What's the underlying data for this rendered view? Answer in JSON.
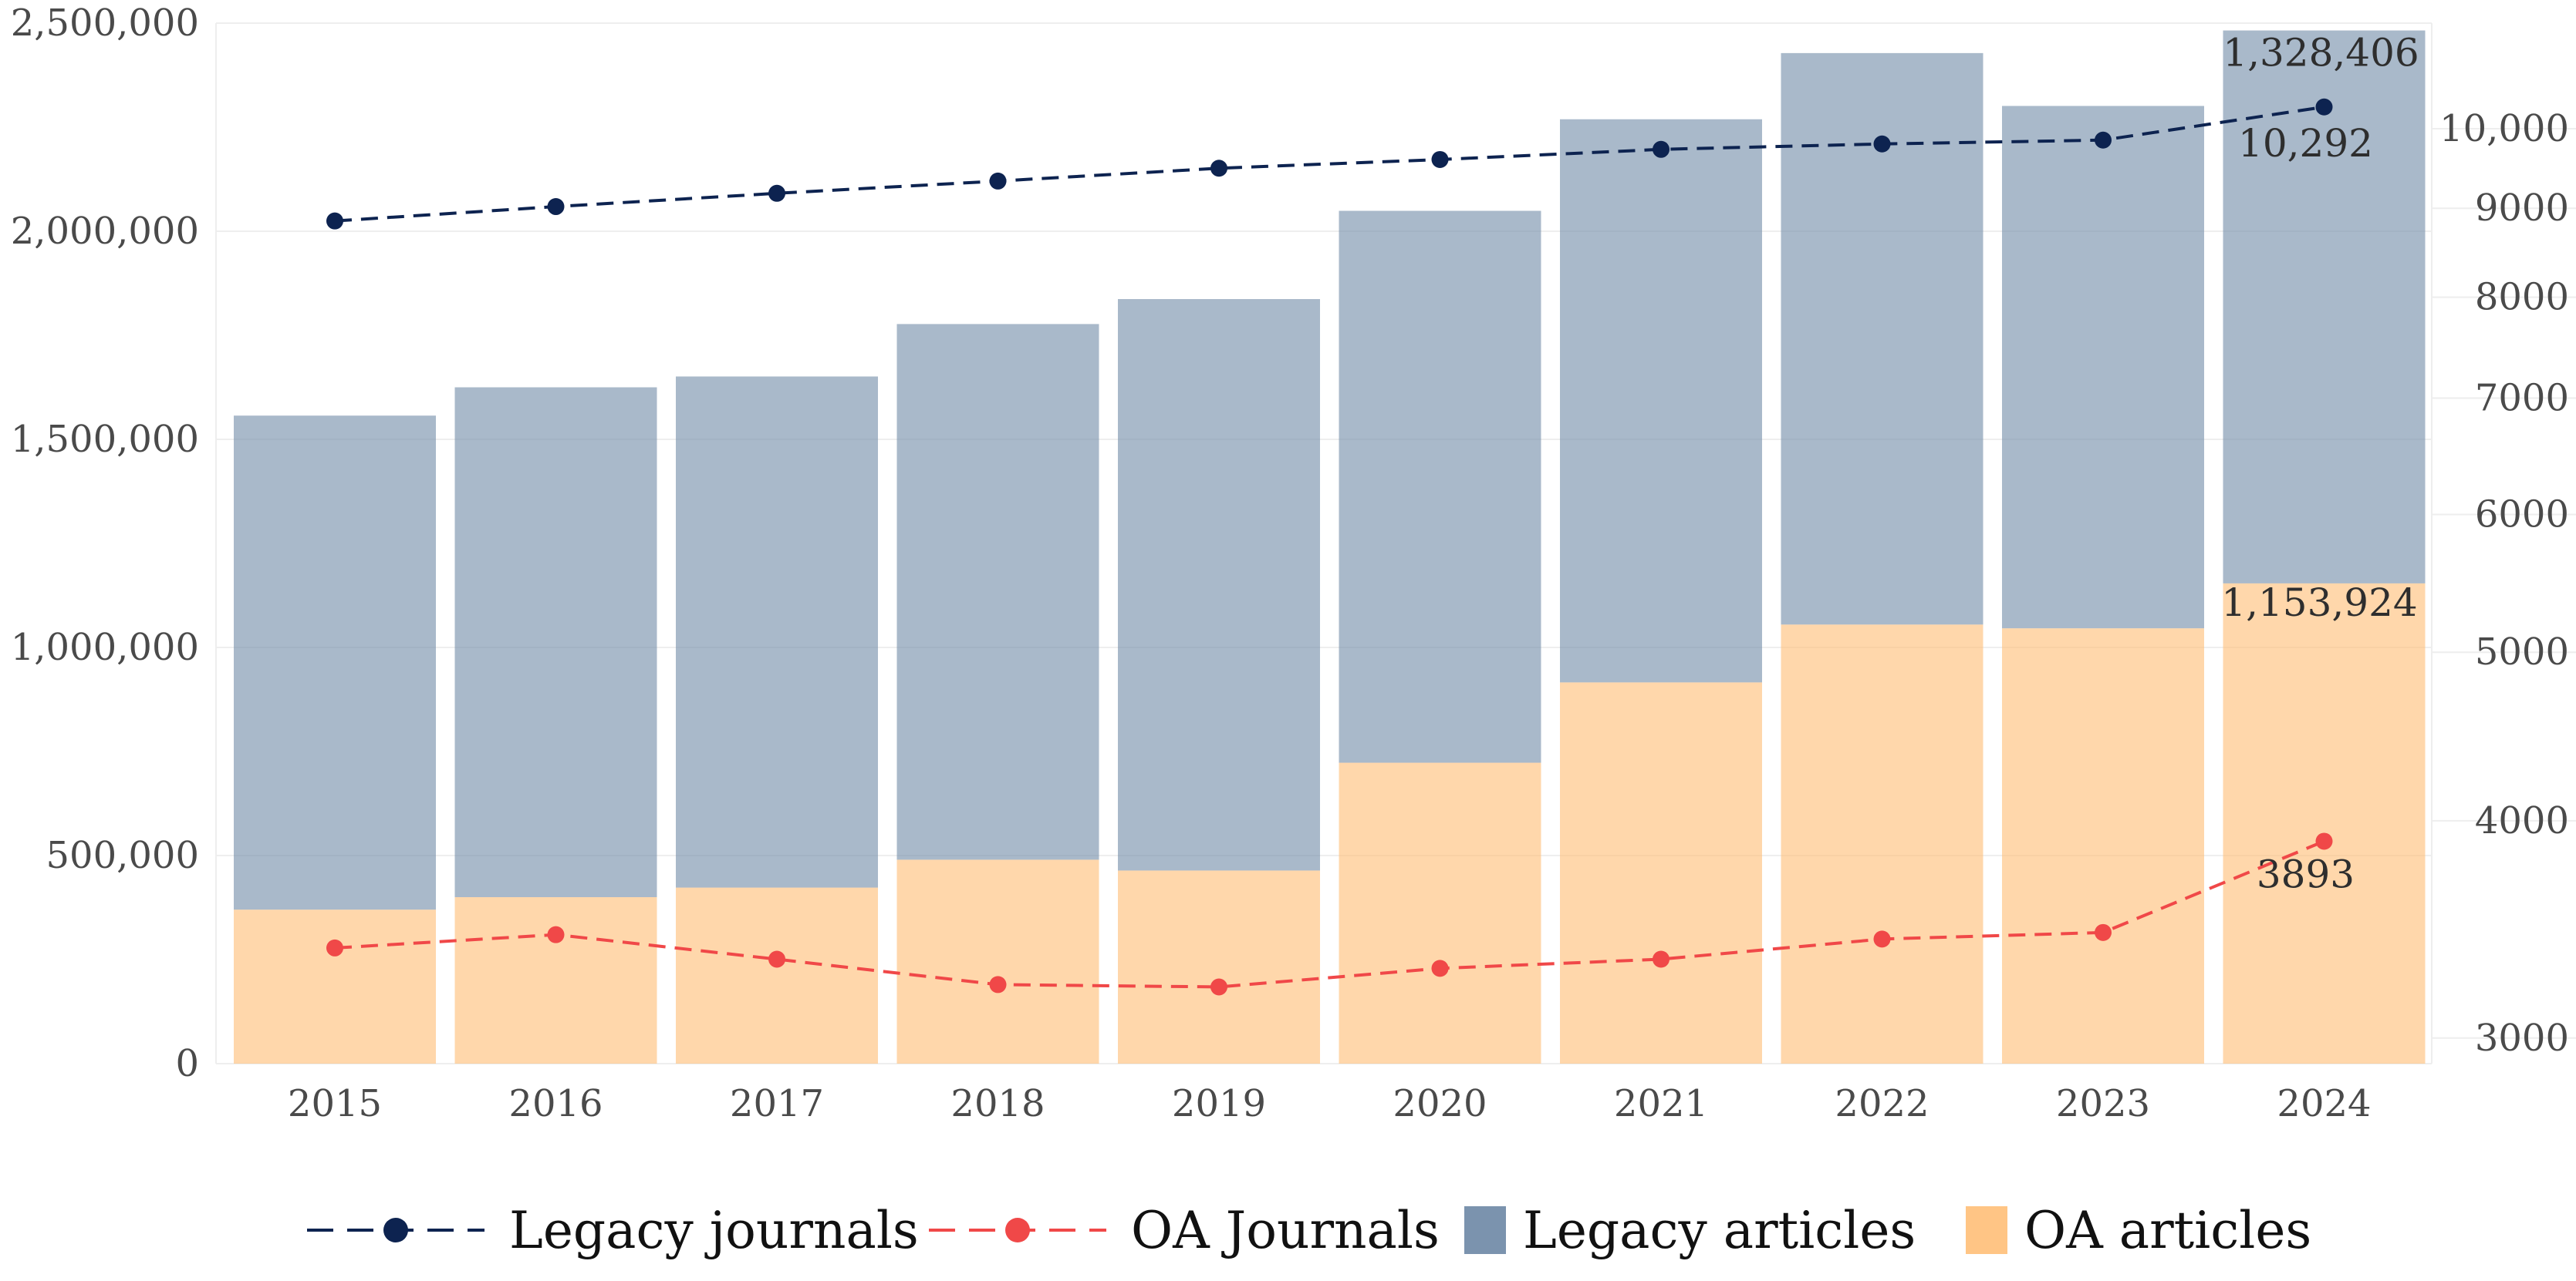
{
  "chart_data": {
    "type": "bar",
    "stacked": true,
    "title": "",
    "xlabel": "",
    "ylabel": "",
    "categories": [
      "2015",
      "2016",
      "2017",
      "2018",
      "2019",
      "2020",
      "2021",
      "2022",
      "2023",
      "2024"
    ],
    "series": [
      {
        "name": "OA articles",
        "kind": "bar",
        "axis": "left",
        "color": "#FFC27E",
        "values": [
          370000,
          400000,
          423000,
          490000,
          464000,
          723000,
          916000,
          1055000,
          1046000,
          1153924
        ]
      },
      {
        "name": "Legacy articles",
        "kind": "bar",
        "axis": "left",
        "color": "#7B93AE",
        "values": [
          1187000,
          1225000,
          1228000,
          1287000,
          1373000,
          1326000,
          1353000,
          1373000,
          1255000,
          1328406
        ]
      },
      {
        "name": "Legacy journals",
        "kind": "line",
        "axis": "right",
        "color": "#0D2350",
        "values": [
          8850,
          9020,
          9180,
          9330,
          9490,
          9600,
          9730,
          9800,
          9850,
          10292
        ]
      },
      {
        "name": "OA Journals",
        "kind": "line",
        "axis": "right",
        "color": "#F04848",
        "values": [
          3380,
          3440,
          3330,
          3220,
          3210,
          3290,
          3330,
          3420,
          3450,
          3893
        ]
      }
    ],
    "left_axis": {
      "ylim": [
        0,
        2500000
      ],
      "ticks": [
        0,
        500000,
        1000000,
        1500000,
        2000000,
        2500000
      ],
      "tick_labels": [
        "0",
        "500,000",
        "1,000,000",
        "1,500,000",
        "2,000,000",
        "2,500,000"
      ]
    },
    "right_axis": {
      "scale": "log",
      "ylim": [
        2900,
        11500
      ],
      "ticks": [
        3000,
        4000,
        5000,
        6000,
        7000,
        8000,
        9000,
        10000
      ],
      "tick_labels": [
        "3000",
        "4000",
        "5000",
        "6000",
        "7000",
        "8000",
        "9000",
        "10,000"
      ]
    },
    "annotations": [
      {
        "text": "1,328,406",
        "target": "Legacy articles",
        "category": "2024"
      },
      {
        "text": "1,153,924",
        "target": "OA articles",
        "category": "2024"
      },
      {
        "text": "10,292",
        "target": "Legacy journals",
        "category": "2024"
      },
      {
        "text": "3893",
        "target": "OA Journals",
        "category": "2024"
      }
    ],
    "legend": {
      "position": "bottom",
      "entries": [
        "Legacy journals",
        "OA Journals",
        "Legacy articles",
        "OA articles"
      ]
    },
    "grid": true
  }
}
